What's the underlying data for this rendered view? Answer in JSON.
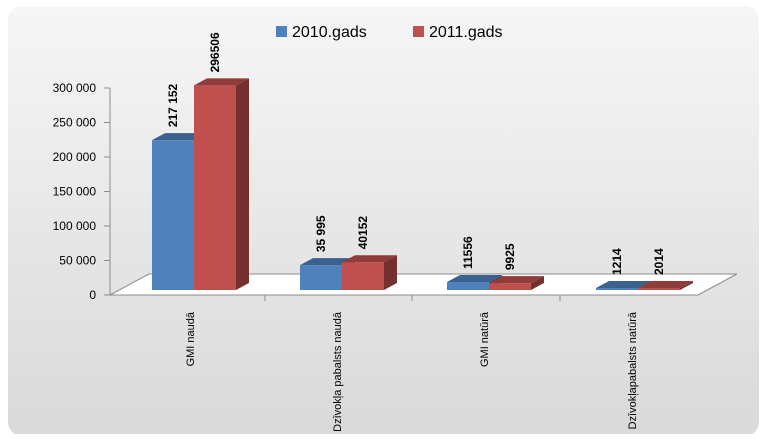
{
  "chart_data": {
    "type": "bar",
    "categories": [
      "GMI naudā",
      "Dzīvokļa pabalsts naudā",
      "GMI natūrā",
      "Dzīvokļapabalsts natūrā"
    ],
    "series": [
      {
        "name": "2010.gads",
        "values": [
          217152,
          35995,
          11556,
          1214
        ],
        "labels": [
          "217 152",
          "35 995",
          "11556",
          "1214"
        ],
        "color": "#4f81bd"
      },
      {
        "name": "2011.gads",
        "values": [
          296506,
          40152,
          9925,
          2014
        ],
        "labels": [
          "296506",
          "40152",
          "9925",
          "2014"
        ],
        "color": "#c0504d"
      }
    ],
    "yticks": [
      "0",
      "50 000",
      "100 000",
      "150 000",
      "200 000",
      "250 000",
      "300 000"
    ],
    "ylim": [
      0,
      300000
    ],
    "legend_position": "top",
    "style": "3d-column",
    "grid": false
  }
}
